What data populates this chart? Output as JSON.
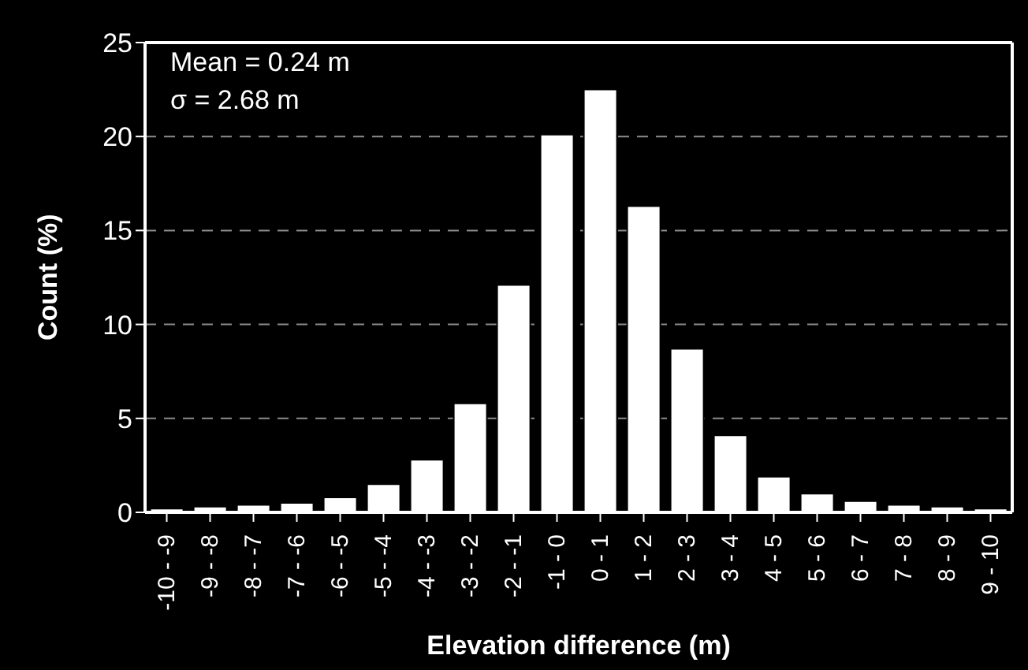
{
  "chart_data": {
    "type": "bar",
    "xlabel": "Elevation difference (m)",
    "ylabel": "Count (%)",
    "categories": [
      "-10 - -9",
      "-9 - -8",
      "-8 - -7",
      "-7 - -6",
      "-6 - -5",
      "-5 - -4",
      "-4 - -3",
      "-3 - -2",
      "-2 - -1",
      "-1 - 0",
      "0 - 1",
      "1 - 2",
      "2 - 3",
      "3 - 4",
      "4 - 5",
      "5 - 6",
      "6 - 7",
      "7 - 8",
      "8 - 9",
      "9 - 10"
    ],
    "values": [
      0.2,
      0.3,
      0.4,
      0.5,
      0.8,
      1.5,
      2.8,
      5.8,
      12.1,
      20.1,
      22.5,
      16.3,
      8.7,
      4.1,
      1.9,
      1.0,
      0.6,
      0.4,
      0.3,
      0.2
    ],
    "color": "#ffffff",
    "ylim": [
      0,
      25
    ],
    "yticks": [
      0,
      5,
      10,
      15,
      20,
      25
    ],
    "grid": "y",
    "annotations": [
      "Mean = 0.24 m",
      "σ = 2.68 m"
    ]
  }
}
